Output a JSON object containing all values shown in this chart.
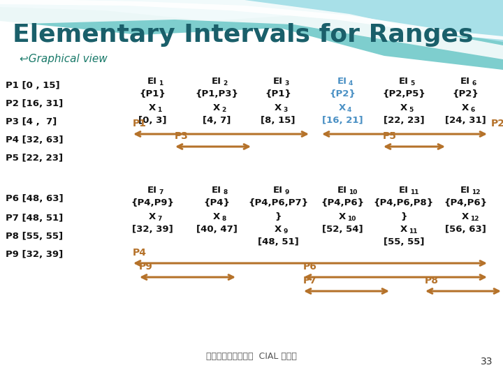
{
  "title": "Elementary Intervals for Ranges",
  "subtitle": "↩Graphical view",
  "title_color": "#1a5f6a",
  "subtitle_color": "#1a7a6a",
  "arrow_color": "#b5722a",
  "highlight_color": "#4a90c4",
  "text_color": "#111111",
  "footer_text": "成功大學資訊工程系  CIAL 實驗室",
  "page_number": "33",
  "p_list": [
    "P1 [0 , 15]",
    "P2 [16, 31]",
    "P3 [4 ,  7]",
    "P4 [32, 63]",
    "P5 [22, 23]",
    "P6 [48, 63]",
    "P7 [48, 51]",
    "P8 [55, 55]",
    "P9 [32, 39]"
  ],
  "ei_top": [
    {
      "label": "EI",
      "num": "1",
      "set": "{P1}",
      "x_label": "X",
      "x_num": "1",
      "range": "[0, 3]",
      "highlight": false
    },
    {
      "label": "EI",
      "num": "2",
      "set": "{P1,P3}",
      "x_label": "X",
      "x_num": "2",
      "range": "[4, 7]",
      "highlight": false
    },
    {
      "label": "EI",
      "num": "3",
      "set": "{P1}",
      "x_label": "X",
      "x_num": "3",
      "range": "[8, 15]",
      "highlight": false
    },
    {
      "label": "EI",
      "num": "4",
      "set": "{P2}",
      "x_label": "X",
      "x_num": "4",
      "range": "[16, 21]",
      "highlight": true
    },
    {
      "label": "EI",
      "num": "5",
      "set": "{P2,P5}",
      "x_label": "X",
      "x_num": "5",
      "range": "[22, 23]",
      "highlight": false
    },
    {
      "label": "EI",
      "num": "6",
      "set": "{P2}",
      "x_label": "X",
      "x_num": "6",
      "range": "[24, 31]",
      "highlight": false
    }
  ],
  "ei_bottom": [
    {
      "label": "EI",
      "num": "7",
      "set": "{P4,P9}",
      "x_label": "X",
      "x_num": "7",
      "range": "[32, 39]",
      "highlight": false,
      "extra": false
    },
    {
      "label": "EI",
      "num": "8",
      "set": "{P4}",
      "x_label": "X",
      "x_num": "8",
      "range": "[40, 47]",
      "highlight": false,
      "extra": false
    },
    {
      "label": "EI",
      "num": "9",
      "set": "{P4,P6,P7",
      "x_label": "}",
      "x_num": "",
      "x2_label": "X",
      "x2_num": "9",
      "range": "[48, 51]",
      "highlight": false,
      "extra": true
    },
    {
      "label": "EI",
      "num": "10",
      "set": "{P4,P6}",
      "x_label": "X",
      "x_num": "10",
      "range": "[52, 54]",
      "highlight": false,
      "extra": false
    },
    {
      "label": "EI",
      "num": "11",
      "set": "{P4,P6,P8",
      "x_label": "}",
      "x_num": "",
      "x2_label": "X",
      "x2_num": "11",
      "range": "[55, 55]",
      "highlight": false,
      "extra": true
    },
    {
      "label": "EI",
      "num": "12",
      "set": "{P4,P6}",
      "x_label": "X",
      "x_num": "12",
      "range": "[56, 63]",
      "highlight": false,
      "extra": false
    }
  ]
}
